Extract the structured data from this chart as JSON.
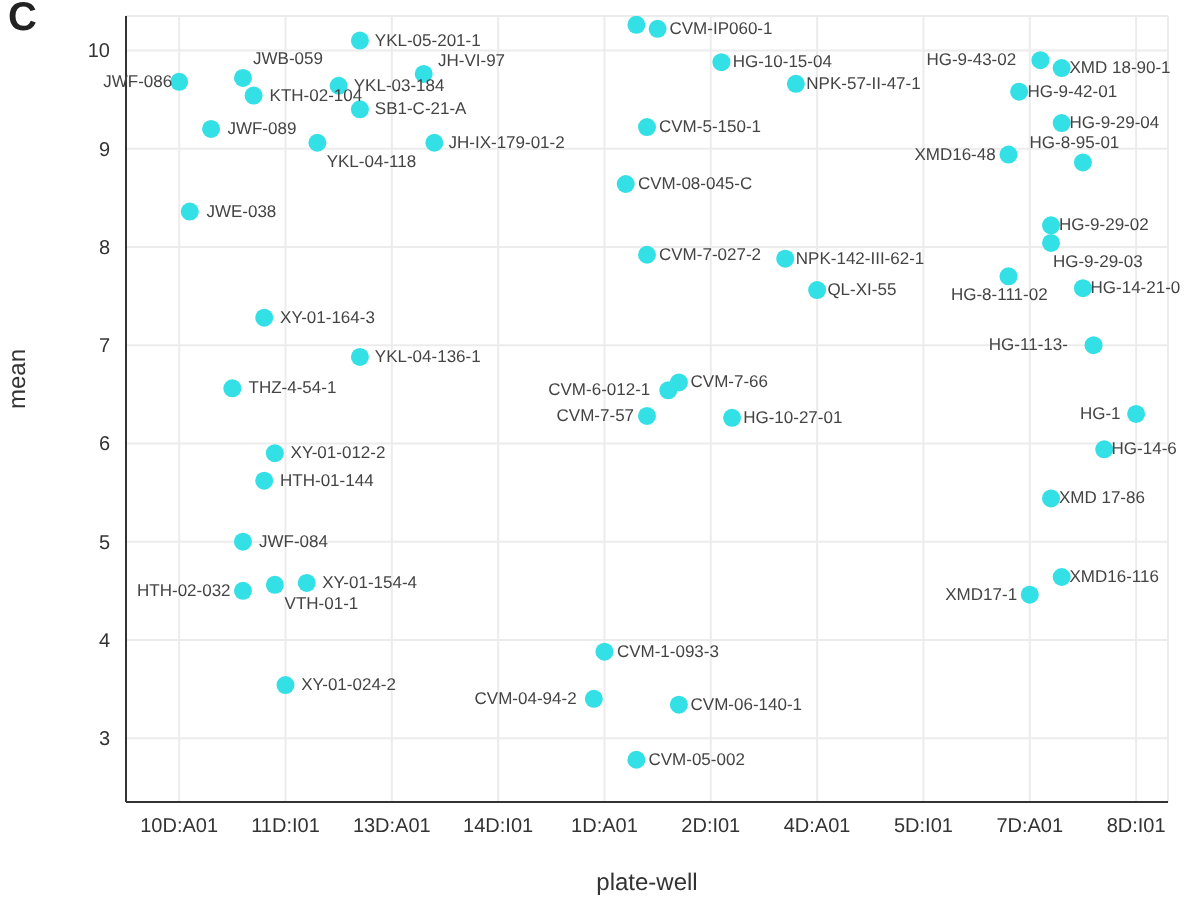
{
  "chart_data": {
    "type": "scatter",
    "title": "C",
    "xlabel": "plate-well",
    "ylabel": "mean",
    "categories": [
      null,
      null,
      null,
      null,
      null,
      "10D:A01",
      null,
      null,
      null,
      null,
      null,
      null,
      null,
      null,
      null,
      "11D:I01",
      null,
      null,
      null,
      null,
      null,
      null,
      null,
      null,
      null,
      "13D:A01",
      null,
      null,
      null,
      null,
      null,
      null,
      null,
      null,
      null,
      "14D:I01",
      null,
      null,
      null,
      null,
      null,
      null,
      null,
      null,
      null,
      "1D:A01",
      null,
      null,
      null,
      null,
      null,
      null,
      null,
      null,
      null,
      "2D:I01",
      null,
      null,
      null,
      null,
      null,
      null,
      null,
      null,
      null,
      "4D:A01",
      null,
      null,
      null,
      null,
      null,
      null,
      null,
      null,
      null,
      "5D:I01",
      null,
      null,
      null,
      null,
      null,
      null,
      null,
      null,
      null,
      "7D:A01",
      null,
      null,
      null,
      null,
      null,
      null,
      null,
      null,
      null,
      "8D:I01",
      null,
      null,
      null
    ],
    "series": [
      {
        "color": "#33e0e6",
        "values": [
          null,
          null,
          null,
          null,
          null,
          9.68,
          8.36,
          null,
          9.2,
          null,
          6.56,
          9.72,
          9.54,
          7.28,
          5.9,
          3.54,
          null,
          4.58,
          9.06,
          null,
          9.64,
          null,
          10.1,
          null,
          null,
          null,
          null,
          null,
          9.76,
          9.06,
          null,
          null,
          null,
          null,
          null,
          null,
          null,
          null,
          null,
          null,
          null,
          null,
          null,
          null,
          3.4,
          3.88,
          null,
          8.64,
          10.26,
          9.22,
          10.22,
          6.54,
          6.62,
          null,
          null,
          null,
          9.88,
          6.26,
          null,
          null,
          null,
          null,
          7.88,
          9.66,
          null,
          7.56,
          null,
          null,
          null,
          null,
          null,
          null,
          null,
          null,
          null,
          null,
          null,
          null,
          null,
          null,
          null,
          null,
          null,
          8.94,
          9.58,
          4.46,
          9.9,
          8.22,
          9.82,
          null,
          8.86,
          7.0,
          5.94,
          null,
          null,
          6.3,
          null,
          null,
          null
        ],
        "value_labels": [
          null,
          null,
          null,
          null,
          null,
          "JWF-086",
          "JWE-038",
          null,
          "JWF-089",
          null,
          "THZ-4-54-1",
          "JWB-059",
          "KTH-02-104",
          "XY-01-164-3",
          "XY-01-012-2",
          "XY-01-024-2",
          null,
          "XY-01-154-4",
          "YKL-04-118",
          null,
          "YKL-03-184",
          null,
          "YKL-05-201-1",
          null,
          null,
          null,
          null,
          null,
          "JH-VI-97",
          "JH-IX-179-01-2",
          null,
          null,
          null,
          null,
          null,
          null,
          null,
          null,
          null,
          null,
          null,
          null,
          null,
          null,
          "CVM-04-94-2",
          "CVM-1-093-3",
          null,
          "CVM-08-045-C",
          null,
          "CVM-5-150-1",
          "CVM-IP060-1",
          "CVM-6-012-1",
          "CVM-7-66",
          null,
          null,
          null,
          "HG-10-15-04",
          "HG-10-27-01",
          null,
          null,
          null,
          null,
          "NPK-142-III-62-1",
          "NPK-57-II-47-1",
          null,
          "QL-XI-55",
          null,
          null,
          null,
          null,
          null,
          null,
          null,
          null,
          null,
          null,
          null,
          null,
          null,
          null,
          null,
          null,
          null,
          "XMD16-48",
          "HG-9-42-01",
          "XMD17-1",
          "HG-9-43-02",
          "HG-9-29-02",
          "XMD 18-90-1",
          null,
          "HG-8-95-01",
          "HG-11-13-",
          "HG-14-6",
          null,
          null,
          "HG-1",
          null,
          null,
          null
        ]
      },
      {
        "color": "#33e0e6",
        "values": [
          null,
          null,
          null,
          null,
          null,
          null,
          null,
          null,
          null,
          null,
          null,
          5.0,
          null,
          5.62,
          4.56,
          null,
          null,
          null,
          null,
          null,
          null,
          null,
          9.4,
          null,
          null,
          null,
          null,
          null,
          null,
          null,
          null,
          null,
          null,
          null,
          null,
          null,
          null,
          null,
          null,
          null,
          null,
          null,
          null,
          null,
          null,
          null,
          null,
          null,
          2.78,
          7.92,
          null,
          null,
          3.34,
          null,
          null,
          null,
          null,
          null,
          null,
          null,
          null,
          null,
          null,
          null,
          null,
          null,
          null,
          null,
          null,
          null,
          null,
          null,
          null,
          null,
          null,
          null,
          null,
          null,
          null,
          null,
          null,
          null,
          null,
          7.7,
          null,
          null,
          null,
          8.04,
          9.26,
          null,
          7.58,
          null,
          null,
          null,
          null,
          null,
          null,
          null,
          null
        ],
        "value_labels": [
          null,
          null,
          null,
          null,
          null,
          null,
          null,
          null,
          null,
          null,
          null,
          "JWF-084",
          null,
          "HTH-01-144",
          "VTH-01-1",
          null,
          null,
          null,
          null,
          null,
          null,
          null,
          "SB1-C-21-A",
          null,
          null,
          null,
          null,
          null,
          null,
          null,
          null,
          null,
          null,
          null,
          null,
          null,
          null,
          null,
          null,
          null,
          null,
          null,
          null,
          null,
          null,
          null,
          null,
          null,
          "CVM-05-002",
          "CVM-7-027-2",
          null,
          null,
          "CVM-06-140-1",
          null,
          null,
          null,
          null,
          null,
          null,
          null,
          null,
          null,
          null,
          null,
          null,
          null,
          null,
          null,
          null,
          null,
          null,
          null,
          null,
          null,
          null,
          null,
          null,
          null,
          null,
          null,
          null,
          null,
          null,
          "HG-8-111-02",
          null,
          null,
          null,
          "HG-9-29-03",
          "HG-9-29-04",
          null,
          "HG-14-21-0",
          null,
          null,
          null,
          null,
          null,
          null,
          null,
          null
        ]
      },
      {
        "color": "#33e0e6",
        "values": [
          null,
          null,
          null,
          null,
          null,
          null,
          null,
          null,
          null,
          null,
          null,
          4.5,
          null,
          null,
          null,
          null,
          null,
          null,
          null,
          null,
          null,
          null,
          6.88,
          null,
          null,
          null,
          null,
          null,
          null,
          null,
          null,
          null,
          null,
          null,
          null,
          null,
          null,
          null,
          null,
          null,
          null,
          null,
          null,
          null,
          null,
          null,
          null,
          null,
          null,
          6.28,
          null,
          null,
          null,
          null,
          null,
          null,
          null,
          null,
          null,
          null,
          null,
          null,
          null,
          null,
          null,
          null,
          null,
          null,
          null,
          null,
          null,
          null,
          null,
          null,
          null,
          null,
          null,
          null,
          null,
          null,
          null,
          null,
          null,
          null,
          null,
          null,
          null,
          5.44,
          4.64,
          null,
          null,
          null,
          null,
          null,
          null,
          null,
          null,
          null,
          null
        ],
        "value_labels": [
          null,
          null,
          null,
          null,
          null,
          null,
          null,
          null,
          null,
          null,
          null,
          "HTH-02-032",
          null,
          null,
          null,
          null,
          null,
          null,
          null,
          null,
          null,
          null,
          "YKL-04-136-1",
          null,
          null,
          null,
          null,
          null,
          null,
          null,
          null,
          null,
          null,
          null,
          null,
          null,
          null,
          null,
          null,
          null,
          null,
          null,
          null,
          null,
          null,
          null,
          null,
          null,
          null,
          "CVM-7-57",
          null,
          null,
          null,
          null,
          null,
          null,
          null,
          null,
          null,
          null,
          null,
          null,
          null,
          null,
          null,
          null,
          null,
          null,
          null,
          null,
          null,
          null,
          null,
          null,
          null,
          null,
          null,
          null,
          null,
          null,
          null,
          null,
          null,
          null,
          null,
          null,
          null,
          "XMD 17-86",
          "XMD16-116",
          null,
          null,
          null,
          null,
          null,
          null,
          null,
          null,
          null,
          null
        ]
      }
    ],
    "ylim": [
      2.35,
      10.35
    ],
    "yticks": [
      3,
      4,
      5,
      6,
      7,
      8,
      9,
      10
    ],
    "grid": true,
    "marker": "circle"
  }
}
